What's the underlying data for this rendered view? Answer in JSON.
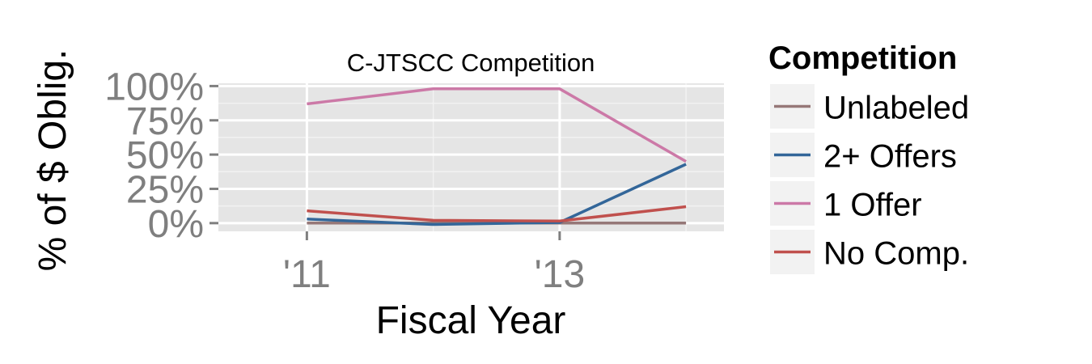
{
  "chart_data": {
    "type": "line",
    "title": "C-JTSCC Competition",
    "xlabel": "Fiscal Year",
    "ylabel": "% of $ Oblig.",
    "x": [
      2011,
      2012,
      2013,
      2014
    ],
    "x_ticks": [
      {
        "value": 2011,
        "label": "'11"
      },
      {
        "value": 2013,
        "label": "'13"
      }
    ],
    "y_ticks": [
      {
        "value": 0,
        "label": "0%"
      },
      {
        "value": 0.25,
        "label": "25%"
      },
      {
        "value": 0.5,
        "label": "50%"
      },
      {
        "value": 0.75,
        "label": "75%"
      },
      {
        "value": 1.0,
        "label": "100%"
      }
    ],
    "xlim": [
      2010.3,
      2014.3
    ],
    "ylim": [
      -0.06,
      1.02
    ],
    "grid": true,
    "legend": {
      "title": "Competition",
      "placement": "right"
    },
    "series": [
      {
        "name": "Unlabeled",
        "color": "#967878",
        "values": [
          0.0,
          0.0,
          0.0,
          0.0
        ]
      },
      {
        "name": "2+ Offers",
        "color": "#336699",
        "values": [
          0.03,
          -0.01,
          0.005,
          0.43
        ]
      },
      {
        "name": "1 Offer",
        "color": "#CC79A7",
        "values": [
          0.87,
          0.98,
          0.98,
          0.45
        ]
      },
      {
        "name": "No Comp.",
        "color": "#C0504D",
        "values": [
          0.09,
          0.02,
          0.015,
          0.12
        ]
      }
    ]
  }
}
